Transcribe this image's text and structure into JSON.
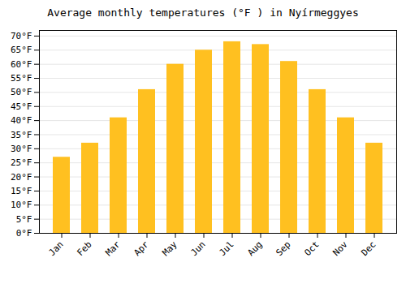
{
  "chart_data": {
    "type": "bar",
    "title": "Average monthly temperatures (°F ) in Nyírmeggyes",
    "categories": [
      "Jan",
      "Feb",
      "Mar",
      "Apr",
      "May",
      "Jun",
      "Jul",
      "Aug",
      "Sep",
      "Oct",
      "Nov",
      "Dec"
    ],
    "values": [
      27,
      32,
      41,
      51,
      60,
      65,
      68,
      67,
      61,
      51,
      41,
      32
    ],
    "color": "#FFC020",
    "ylim": [
      0,
      72
    ],
    "yticks": [
      {
        "value": 0,
        "label": "0°F"
      },
      {
        "value": 5,
        "label": "5°F"
      },
      {
        "value": 10,
        "label": "10°F"
      },
      {
        "value": 15,
        "label": "15°F"
      },
      {
        "value": 20,
        "label": "20°F"
      },
      {
        "value": 25,
        "label": "25°F"
      },
      {
        "value": 30,
        "label": "30°F"
      },
      {
        "value": 35,
        "label": "35°F"
      },
      {
        "value": 40,
        "label": "40°F"
      },
      {
        "value": 45,
        "label": "45°F"
      },
      {
        "value": 50,
        "label": "50°F"
      },
      {
        "value": 55,
        "label": "55°F"
      },
      {
        "value": 60,
        "label": "60°F"
      },
      {
        "value": 65,
        "label": "65°F"
      },
      {
        "value": 70,
        "label": "70°F"
      }
    ],
    "grid": true
  }
}
